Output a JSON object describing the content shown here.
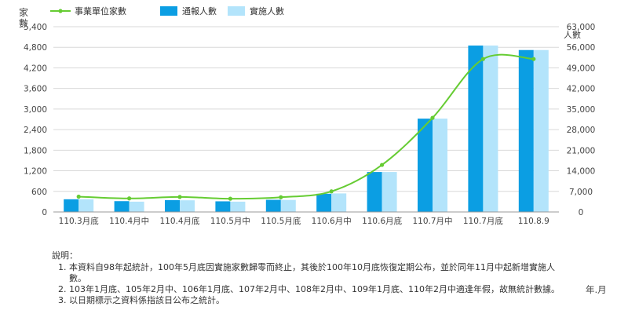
{
  "chart_data": {
    "type": "bar",
    "categories": [
      "110.3月底",
      "110.4月中",
      "110.4月底",
      "110.5月中",
      "110.5月底",
      "110.6月中",
      "110.6月底",
      "110.7月中",
      "110.7月底",
      "110.8.9"
    ],
    "series": [
      {
        "name": "通報人數",
        "type": "bar",
        "axis": "left",
        "color": "#0b9ee3",
        "values": [
          370,
          315,
          345,
          310,
          355,
          530,
          1165,
          2720,
          4850,
          4720
        ]
      },
      {
        "name": "實施人數",
        "type": "bar",
        "axis": "left",
        "color": "#b3e4fb",
        "values": [
          370,
          300,
          340,
          300,
          350,
          540,
          1165,
          2720,
          4850,
          4720
        ]
      },
      {
        "name": "事業單位家數",
        "type": "line",
        "axis": "right",
        "color": "#66cc33",
        "values": [
          5200,
          4600,
          5100,
          4500,
          5000,
          7000,
          16000,
          32000,
          52000,
          52000
        ]
      }
    ],
    "y_left": {
      "label_top": "家",
      "label_bottom": "數",
      "range": [
        0,
        5400
      ],
      "ticks": [
        "0",
        "600",
        "1,200",
        "1,800",
        "2,400",
        "3,000",
        "3,600",
        "4,200",
        "4,800",
        "5,400"
      ]
    },
    "y_right": {
      "label": "人數",
      "range": [
        0,
        63000
      ],
      "ticks": [
        "0",
        "7,000",
        "14,000",
        "21,000",
        "28,000",
        "35,000",
        "42,000",
        "49,000",
        "56,000",
        "63,000"
      ]
    },
    "x_unit": "年.月",
    "legend_position": "top-left",
    "grid": true
  },
  "notes": {
    "title": "說明：",
    "items": [
      "本資料自98年起統計，100年5月底因實施家數歸零而終止，其後於100年10月底恢復定期公布，並於同年11月中起新增實施人數。",
      "103年1月底、105年2月中、106年1月底、107年2月中、108年2月中、109年1月底、110年2月中適逢年假，故無統計數據。",
      "以日期標示之資料係指該日公布之統計。"
    ]
  }
}
